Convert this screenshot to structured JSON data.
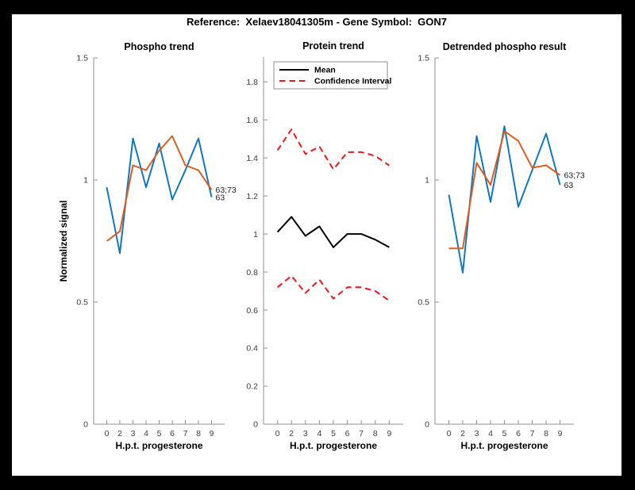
{
  "header": {
    "title": "Reference:  Xelaev18041305m - Gene Symbol:  GON7"
  },
  "colors": {
    "blue": "#0f79bf",
    "orange": "#dd5c1e",
    "red": "#f21717",
    "black": "#000000",
    "axis": "#909090",
    "figure_bg": "#ffffff",
    "window_bg": "#000000"
  },
  "chart_data": [
    {
      "type": "line",
      "title": "Phospho trend",
      "xlabel": "H.p.t. progesterone",
      "ylabel": "Normalized signal",
      "x_tick_labels": [
        "0",
        "2",
        "3",
        "4",
        "5",
        "6",
        "7",
        "8",
        "9"
      ],
      "xlim": [
        0,
        10
      ],
      "ylim": [
        0,
        1.5
      ],
      "y_ticks": [
        0,
        0.5,
        1,
        1.5
      ],
      "y_tick_labels": [
        "0",
        "0.5",
        "1",
        "1.5"
      ],
      "grid": false,
      "series": [
        {
          "name": "63",
          "color_key": "blue",
          "dash": false,
          "values": [
            0.97,
            0.7,
            1.17,
            0.97,
            1.15,
            0.92,
            1.04,
            1.17,
            0.93
          ]
        },
        {
          "name": "63;73",
          "color_key": "orange",
          "dash": false,
          "values": [
            0.75,
            0.79,
            1.06,
            1.04,
            1.12,
            1.18,
            1.06,
            1.04,
            0.96
          ]
        }
      ],
      "end_labels": [
        {
          "text": "63;73",
          "series": 1
        },
        {
          "text": "63",
          "series": 0
        }
      ]
    },
    {
      "type": "line",
      "title": "Protein trend",
      "xlabel": "H.p.t. progesterone",
      "ylabel": "",
      "x_tick_labels": [
        "0",
        "2",
        "3",
        "4",
        "5",
        "6",
        "7",
        "8",
        "9"
      ],
      "xlim": [
        0,
        10
      ],
      "ylim": [
        0,
        1.93
      ],
      "y_ticks": [
        0,
        0.2,
        0.4,
        0.6,
        0.8,
        1,
        1.2,
        1.4,
        1.6,
        1.8
      ],
      "y_tick_labels": [
        "0",
        "0.2",
        "0.4",
        "0.6",
        "0.8",
        "1",
        "1.2",
        "1.4",
        "1.6",
        "1.8"
      ],
      "grid": false,
      "series": [
        {
          "name": "Mean",
          "color_key": "black",
          "dash": false,
          "values": [
            1.01,
            1.09,
            0.99,
            1.04,
            0.93,
            1.0,
            1.0,
            0.97,
            0.93
          ]
        },
        {
          "name": "Confidence Interval upper",
          "color_key": "red",
          "dash": true,
          "values": [
            1.44,
            1.55,
            1.42,
            1.46,
            1.34,
            1.43,
            1.43,
            1.41,
            1.36
          ]
        },
        {
          "name": "Confidence Interval lower",
          "color_key": "red",
          "dash": true,
          "values": [
            0.72,
            0.78,
            0.69,
            0.76,
            0.66,
            0.72,
            0.72,
            0.7,
            0.65
          ]
        }
      ],
      "legend": {
        "position": "northwest",
        "entries": [
          {
            "label": "Mean",
            "color_key": "black",
            "dash": false
          },
          {
            "label": "Confidence Interval",
            "color_key": "red",
            "dash": true
          }
        ]
      },
      "end_labels": []
    },
    {
      "type": "line",
      "title": "Detrended phospho result",
      "xlabel": "H.p.t. progesterone",
      "ylabel": "",
      "x_tick_labels": [
        "0",
        "2",
        "3",
        "4",
        "5",
        "6",
        "7",
        "8",
        "9"
      ],
      "xlim": [
        0,
        10
      ],
      "ylim": [
        0,
        1.5
      ],
      "y_ticks": [
        0,
        0.5,
        1,
        1.5
      ],
      "y_tick_labels": [
        "0",
        "0.5",
        "1",
        "1.5"
      ],
      "grid": false,
      "series": [
        {
          "name": "63",
          "color_key": "blue",
          "dash": false,
          "values": [
            0.94,
            0.62,
            1.18,
            0.91,
            1.22,
            0.89,
            1.04,
            1.19,
            0.98
          ]
        },
        {
          "name": "63;73",
          "color_key": "orange",
          "dash": false,
          "values": [
            0.72,
            0.72,
            1.07,
            0.98,
            1.2,
            1.16,
            1.05,
            1.06,
            1.02
          ]
        }
      ],
      "end_labels": [
        {
          "text": "63;73",
          "series": 1
        },
        {
          "text": "63",
          "series": 0
        }
      ]
    }
  ]
}
